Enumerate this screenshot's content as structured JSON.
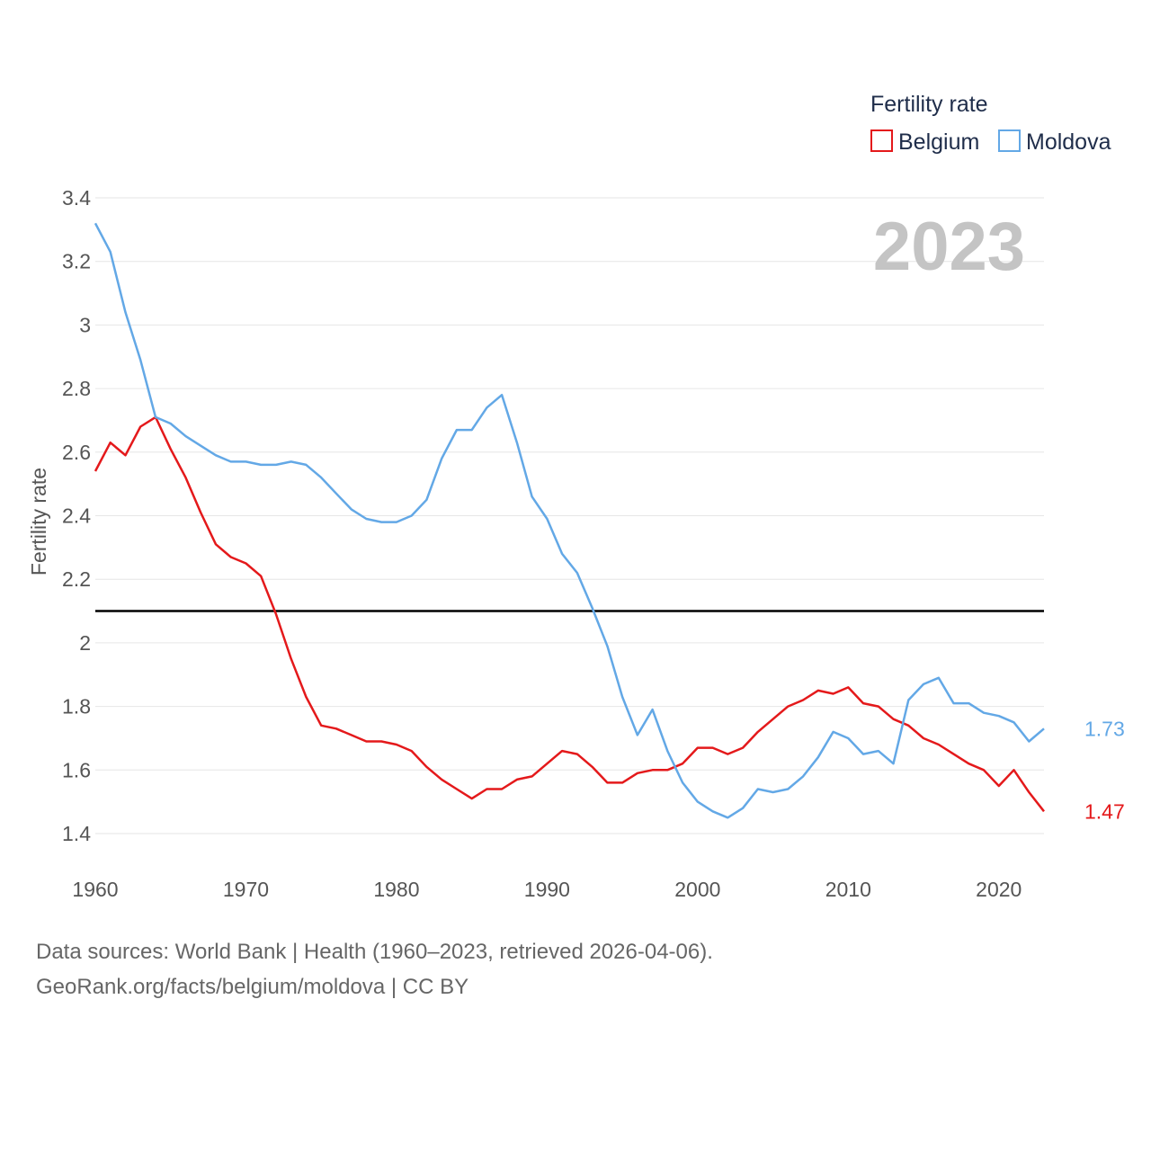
{
  "chart_data": {
    "type": "line",
    "ylabel": "Fertility rate",
    "xlabel": "",
    "xlim": [
      1960,
      2023
    ],
    "ylim": [
      1.35,
      3.45
    ],
    "x_ticks": [
      1960,
      1970,
      1980,
      1990,
      2000,
      2010,
      2020
    ],
    "y_ticks": [
      1.4,
      1.6,
      1.8,
      2,
      2.2,
      2.4,
      2.6,
      2.8,
      3,
      3.2,
      3.4
    ],
    "reference_line": 2.1,
    "year_label": "2023",
    "legend": {
      "title": "Fertility rate",
      "position": "top-right"
    },
    "x": [
      1960,
      1961,
      1962,
      1963,
      1964,
      1965,
      1966,
      1967,
      1968,
      1969,
      1970,
      1971,
      1972,
      1973,
      1974,
      1975,
      1976,
      1977,
      1978,
      1979,
      1980,
      1981,
      1982,
      1983,
      1984,
      1985,
      1986,
      1987,
      1988,
      1989,
      1990,
      1991,
      1992,
      1993,
      1994,
      1995,
      1996,
      1997,
      1998,
      1999,
      2000,
      2001,
      2002,
      2003,
      2004,
      2005,
      2006,
      2007,
      2008,
      2009,
      2010,
      2011,
      2012,
      2013,
      2014,
      2015,
      2016,
      2017,
      2018,
      2019,
      2020,
      2021,
      2022,
      2023
    ],
    "series": [
      {
        "name": "Belgium",
        "color": "#e4191b",
        "end_label": "1.47",
        "flag": "belgium-flag-icon",
        "values": [
          2.54,
          2.63,
          2.59,
          2.68,
          2.71,
          2.61,
          2.52,
          2.41,
          2.31,
          2.27,
          2.25,
          2.21,
          2.09,
          1.95,
          1.83,
          1.74,
          1.73,
          1.71,
          1.69,
          1.69,
          1.68,
          1.66,
          1.61,
          1.57,
          1.54,
          1.51,
          1.54,
          1.54,
          1.57,
          1.58,
          1.62,
          1.66,
          1.65,
          1.61,
          1.56,
          1.56,
          1.59,
          1.6,
          1.6,
          1.62,
          1.67,
          1.67,
          1.65,
          1.67,
          1.72,
          1.76,
          1.8,
          1.82,
          1.85,
          1.84,
          1.86,
          1.81,
          1.8,
          1.76,
          1.74,
          1.7,
          1.68,
          1.65,
          1.62,
          1.6,
          1.55,
          1.6,
          1.53,
          1.47
        ]
      },
      {
        "name": "Moldova",
        "color": "#63a8e6",
        "end_label": "1.73",
        "flag": "moldova-flag-icon",
        "values": [
          3.32,
          3.23,
          3.04,
          2.89,
          2.71,
          2.69,
          2.65,
          2.62,
          2.59,
          2.57,
          2.57,
          2.56,
          2.56,
          2.57,
          2.56,
          2.52,
          2.47,
          2.42,
          2.39,
          2.38,
          2.38,
          2.4,
          2.45,
          2.58,
          2.67,
          2.67,
          2.74,
          2.78,
          2.63,
          2.46,
          2.39,
          2.28,
          2.22,
          2.11,
          1.99,
          1.83,
          1.71,
          1.79,
          1.66,
          1.56,
          1.5,
          1.47,
          1.45,
          1.48,
          1.54,
          1.53,
          1.54,
          1.58,
          1.64,
          1.72,
          1.7,
          1.65,
          1.66,
          1.62,
          1.82,
          1.87,
          1.89,
          1.81,
          1.81,
          1.78,
          1.77,
          1.75,
          1.69,
          1.73
        ]
      }
    ]
  },
  "footer": {
    "sources": "Data sources: World Bank | Health (1960–2023, retrieved 2026-04-06).",
    "credit": "GeoRank.org/facts/belgium/moldova | CC BY"
  }
}
